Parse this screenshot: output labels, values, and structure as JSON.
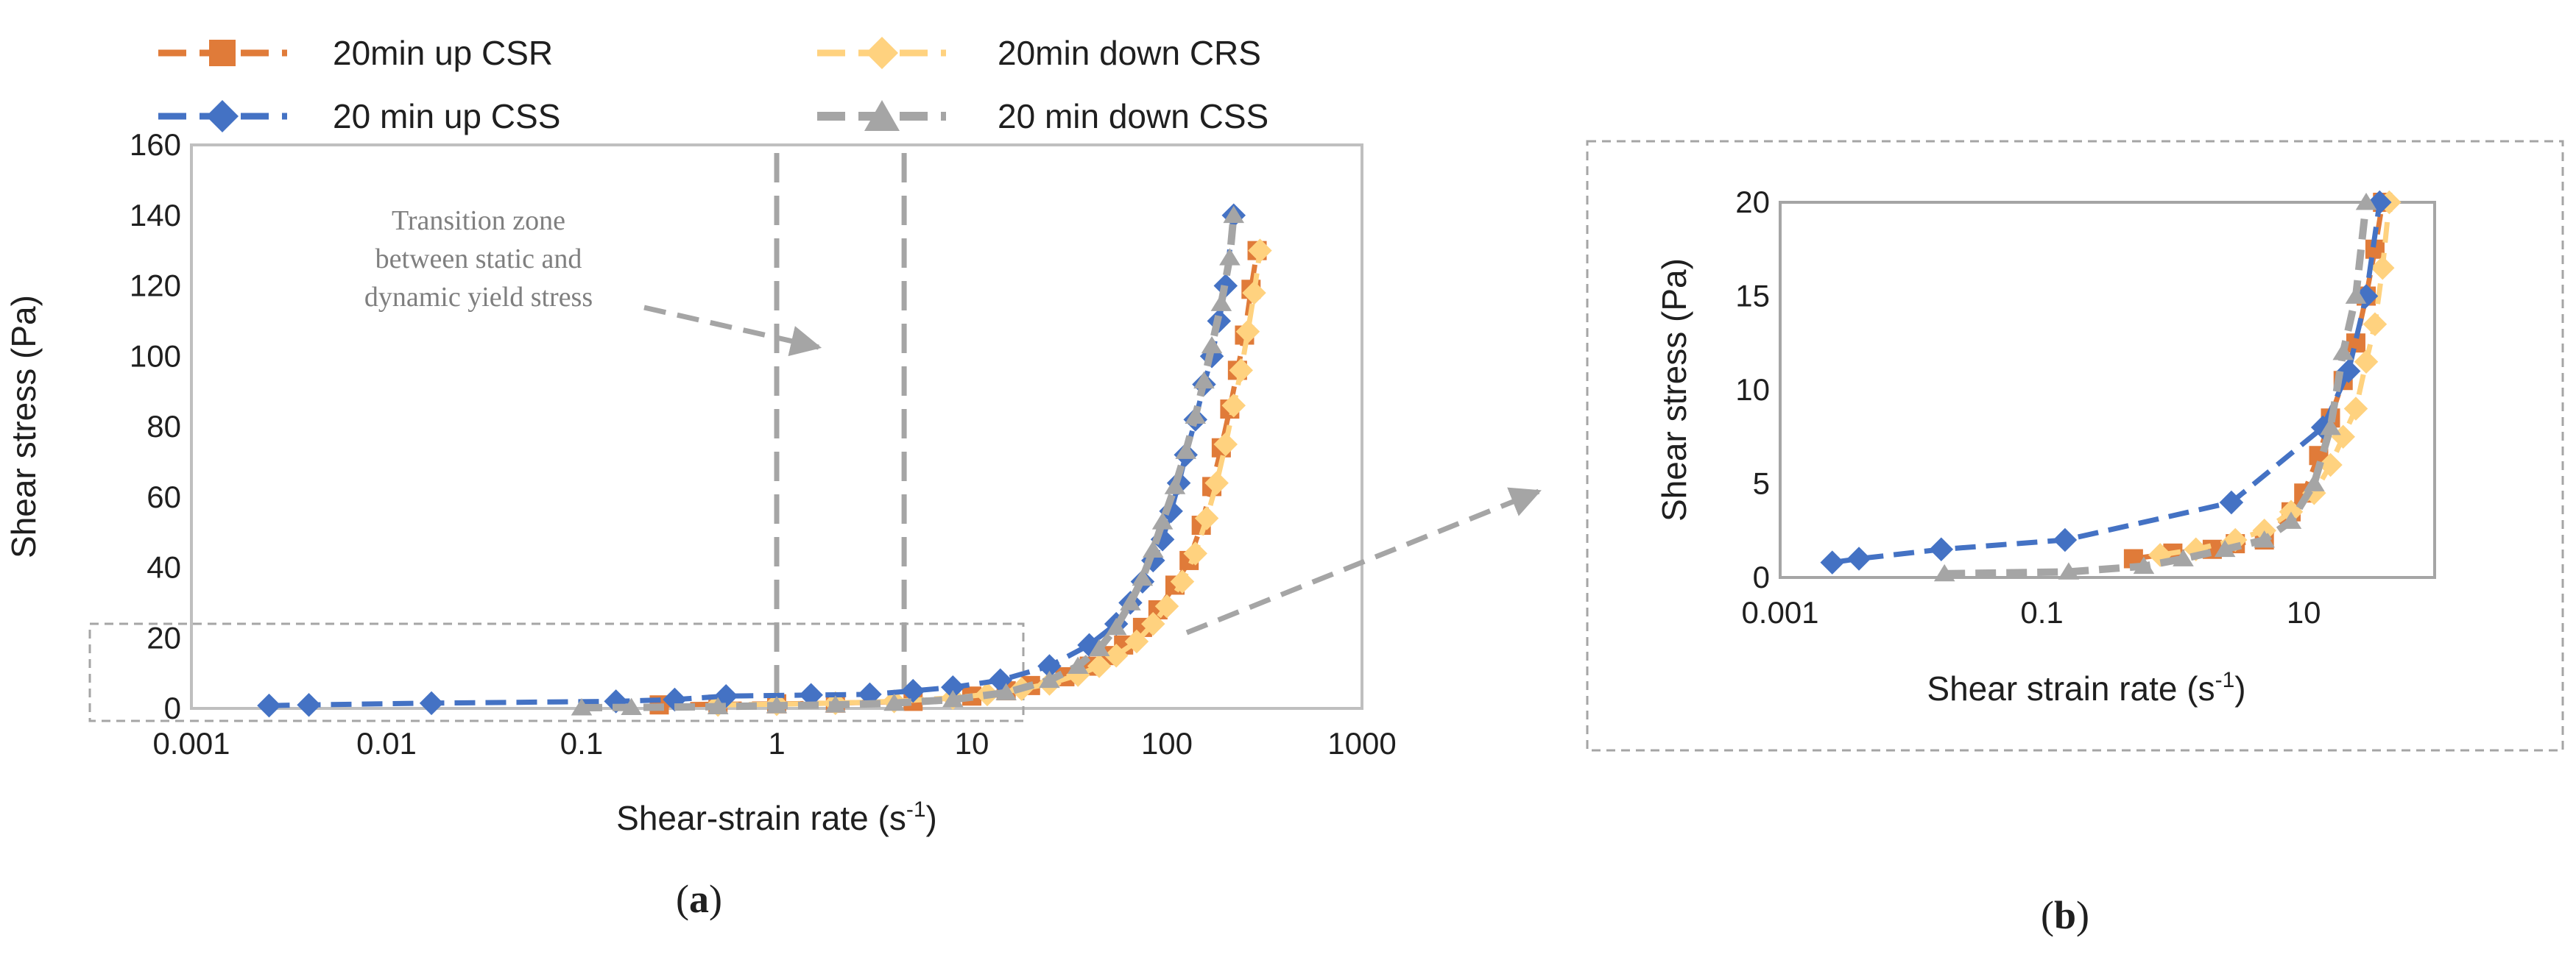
{
  "legend": [
    {
      "label": "20min up CSR",
      "color": "#e07b39",
      "marker": "square"
    },
    {
      "label": "20min down CRS",
      "color": "#ffd27f",
      "marker": "diamond"
    },
    {
      "label": "20 min up CSS",
      "color": "#4472c4",
      "marker": "diamond"
    },
    {
      "label": "20 min down CSS",
      "color": "#a5a5a5",
      "marker": "triangle"
    }
  ],
  "annotation": {
    "lines": [
      "Transition zone",
      "between static and",
      "dynamic yield stress"
    ],
    "zone_bounds_rate": [
      1.0,
      4.5
    ]
  },
  "captions": {
    "a": "a",
    "b": "b"
  },
  "chart_data": [
    {
      "id": "a",
      "type": "scatter",
      "xscale": "log",
      "xlim": [
        0.001,
        1000
      ],
      "ylim": [
        0,
        160
      ],
      "xticks": [
        "0.001",
        "0.01",
        "0.1",
        "1",
        "10",
        "100",
        "1000"
      ],
      "yticks": [
        "0",
        "20",
        "40",
        "60",
        "80",
        "100",
        "120",
        "140",
        "160"
      ],
      "xlabel": "Shear-strain rate (s",
      "xlabel_sup": "-1",
      "xlabel_end": ")",
      "ylabel": "Shear stress (Pa)",
      "zoom_box_ylim": [
        0,
        22
      ],
      "series": [
        {
          "name": "20min up CSR",
          "x": [
            0.25,
            0.5,
            1,
            2,
            5,
            10,
            15,
            20,
            30,
            40,
            50,
            60,
            75,
            90,
            110,
            130,
            150,
            170,
            190,
            210,
            230,
            250,
            270,
            290
          ],
          "y": [
            1,
            1.2,
            1.3,
            1.5,
            2,
            3.5,
            5,
            6.5,
            9,
            12,
            15,
            18,
            23,
            28,
            35,
            42,
            52,
            63,
            74,
            85,
            96,
            106,
            119,
            130
          ]
        },
        {
          "name": "20min down CRS",
          "x": [
            0.5,
            1,
            2,
            4,
            8,
            12,
            18,
            25,
            35,
            45,
            55,
            70,
            85,
            100,
            120,
            140,
            160,
            180,
            200,
            220,
            240,
            260,
            280,
            300
          ],
          "y": [
            1,
            1.2,
            1.5,
            2,
            3,
            4,
            5.5,
            7,
            9.5,
            12,
            15,
            19,
            24,
            29,
            36,
            44,
            54,
            64,
            75,
            86,
            96,
            107,
            118,
            130
          ]
        },
        {
          "name": "20 min up CSS",
          "x": [
            0.0025,
            0.004,
            0.017,
            0.15,
            0.3,
            0.55,
            1.5,
            3,
            5,
            8,
            14,
            25,
            40,
            55,
            65,
            75,
            85,
            95,
            105,
            115,
            125,
            140,
            155,
            170,
            185,
            200,
            220
          ],
          "y": [
            0.8,
            1,
            1.5,
            2,
            2.5,
            3.5,
            3.8,
            4,
            5,
            6,
            8,
            12,
            18,
            24,
            30,
            36,
            42,
            48,
            56,
            64,
            72,
            82,
            92,
            100,
            110,
            120,
            140
          ]
        },
        {
          "name": "20 min down CSS",
          "x": [
            0.1,
            0.18,
            0.5,
            1,
            2,
            4,
            8,
            15,
            25,
            35,
            45,
            55,
            65,
            75,
            85,
            95,
            110,
            125,
            140,
            155,
            170,
            190,
            210,
            220
          ],
          "y": [
            0.2,
            0.3,
            0.5,
            0.8,
            1,
            1.5,
            2.5,
            4.5,
            8,
            12,
            17,
            23,
            30,
            37,
            45,
            53,
            63,
            73,
            83,
            93,
            103,
            115,
            128,
            140
          ]
        }
      ]
    },
    {
      "id": "b",
      "type": "scatter",
      "xscale": "log",
      "xlim": [
        0.001,
        100
      ],
      "ylim": [
        0,
        20
      ],
      "xticks": [
        "0.001",
        "0.1",
        "10"
      ],
      "yticks": [
        "0",
        "5",
        "10",
        "15",
        "20"
      ],
      "xlabel": "Shear strain rate (s",
      "xlabel_sup": "-1",
      "xlabel_end": ")",
      "ylabel": "Shear stress (Pa)",
      "series": [
        {
          "name": "20min up CSR",
          "x": [
            0.5,
            1,
            2,
            3,
            5,
            8,
            10,
            13,
            16,
            20,
            25,
            30,
            35,
            40
          ],
          "y": [
            1,
            1.3,
            1.5,
            1.8,
            2,
            3.5,
            4.5,
            6.5,
            8.5,
            10.5,
            12.5,
            15,
            17.5,
            20
          ]
        },
        {
          "name": "20min down CRS",
          "x": [
            0.8,
            1.5,
            3,
            5,
            8,
            12,
            16,
            20,
            25,
            30,
            35,
            40,
            45
          ],
          "y": [
            1.2,
            1.5,
            2,
            2.5,
            3.5,
            4.5,
            6,
            7.5,
            9,
            11.5,
            13.5,
            16.5,
            20
          ]
        },
        {
          "name": "20 min up CSS",
          "x": [
            0.0025,
            0.004,
            0.017,
            0.15,
            2.8,
            14,
            22,
            30,
            38
          ],
          "y": [
            0.8,
            1,
            1.5,
            2,
            4,
            8,
            11,
            15,
            20
          ]
        },
        {
          "name": "20 min down CSS",
          "x": [
            0.018,
            0.16,
            0.6,
            1.2,
            2.5,
            5,
            8,
            12,
            16,
            20,
            25,
            30
          ],
          "y": [
            0.2,
            0.3,
            0.6,
            1,
            1.5,
            2,
            3,
            5,
            8,
            12,
            15,
            20
          ]
        }
      ]
    }
  ]
}
